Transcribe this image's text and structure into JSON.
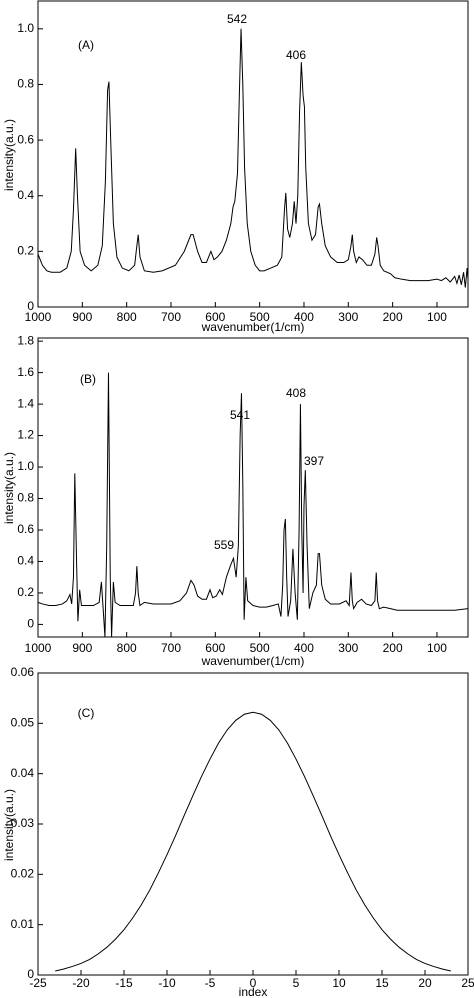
{
  "chart_data": [
    {
      "type": "line",
      "ylabel": "intensity(a.u.)",
      "xlabel": "wavenumber(1/cm)",
      "color": "#000000",
      "annotations": [
        "(A)",
        "542",
        "406"
      ],
      "xlim": [
        1000,
        30
      ],
      "xticks": [
        1000,
        900,
        800,
        700,
        600,
        500,
        400,
        300,
        200,
        100
      ],
      "ylim": [
        0,
        1.1
      ],
      "yticks": [
        0,
        0.2,
        0.4,
        0.6,
        0.8,
        {
          "value": 1,
          "label": "1.0"
        }
      ],
      "x": [
        1000,
        990,
        980,
        970,
        950,
        935,
        925,
        920,
        915,
        911,
        905,
        895,
        880,
        865,
        855,
        848,
        843,
        840,
        836,
        830,
        822,
        810,
        795,
        782,
        777,
        774,
        770,
        760,
        740,
        720,
        690,
        670,
        655,
        650,
        640,
        630,
        620,
        610,
        603,
        595,
        585,
        575,
        565,
        560,
        556,
        550,
        546,
        542,
        538,
        534,
        528,
        520,
        510,
        500,
        490,
        475,
        460,
        450,
        444,
        441,
        437,
        432,
        426,
        422,
        418,
        414,
        410,
        406,
        402,
        399,
        396,
        390,
        382,
        374,
        368,
        365,
        360,
        352,
        340,
        325,
        310,
        300,
        294,
        291,
        288,
        282,
        276,
        268,
        258,
        248,
        240,
        236,
        233,
        228,
        220,
        205,
        195,
        180,
        160,
        140,
        120,
        100,
        90,
        80,
        70,
        60,
        55,
        50,
        45,
        40,
        36,
        32,
        30
      ],
      "values": [
        0.19,
        0.15,
        0.13,
        0.125,
        0.125,
        0.14,
        0.2,
        0.35,
        0.57,
        0.4,
        0.2,
        0.15,
        0.13,
        0.15,
        0.22,
        0.45,
        0.78,
        0.81,
        0.6,
        0.3,
        0.18,
        0.14,
        0.13,
        0.15,
        0.22,
        0.26,
        0.18,
        0.13,
        0.125,
        0.13,
        0.15,
        0.2,
        0.26,
        0.26,
        0.2,
        0.16,
        0.16,
        0.2,
        0.17,
        0.18,
        0.2,
        0.24,
        0.3,
        0.36,
        0.38,
        0.48,
        0.75,
        1.0,
        0.8,
        0.5,
        0.3,
        0.2,
        0.15,
        0.13,
        0.13,
        0.14,
        0.15,
        0.18,
        0.35,
        0.41,
        0.28,
        0.25,
        0.3,
        0.38,
        0.3,
        0.4,
        0.7,
        0.88,
        0.76,
        0.72,
        0.5,
        0.3,
        0.24,
        0.26,
        0.36,
        0.37,
        0.3,
        0.22,
        0.18,
        0.16,
        0.16,
        0.17,
        0.22,
        0.26,
        0.2,
        0.16,
        0.18,
        0.17,
        0.15,
        0.15,
        0.19,
        0.25,
        0.22,
        0.15,
        0.13,
        0.12,
        0.105,
        0.1,
        0.095,
        0.095,
        0.095,
        0.1,
        0.095,
        0.105,
        0.09,
        0.11,
        0.085,
        0.115,
        0.08,
        0.125,
        0.07,
        0.14,
        0.1
      ]
    },
    {
      "type": "line",
      "ylabel": "intensity(a.u.)",
      "xlabel": "wavenumber(1/cm)",
      "color": "#000000",
      "annotations": [
        "(B)",
        "541",
        "408",
        "397",
        "559"
      ],
      "xlim": [
        1000,
        30
      ],
      "xticks": [
        1000,
        900,
        800,
        700,
        600,
        500,
        400,
        300,
        200,
        100
      ],
      "ylim": [
        -0.08,
        1.82
      ],
      "yticks": [
        0,
        0.2,
        0.4,
        0.6,
        0.8,
        {
          "value": 1,
          "label": "1.0"
        },
        1.2,
        1.4,
        1.6,
        1.8
      ],
      "x": [
        1000,
        990,
        975,
        960,
        945,
        935,
        928,
        924,
        920,
        917,
        913,
        910,
        906,
        902,
        890,
        875,
        862,
        857,
        853,
        849,
        845,
        841,
        837,
        834,
        830,
        826,
        815,
        800,
        785,
        780,
        777,
        774,
        770,
        760,
        740,
        720,
        700,
        680,
        665,
        655,
        648,
        640,
        630,
        620,
        612,
        606,
        598,
        590,
        584,
        575,
        565,
        559,
        553,
        548,
        544,
        541,
        538,
        535,
        531,
        527,
        515,
        500,
        485,
        470,
        458,
        452,
        448,
        445,
        442,
        439,
        436,
        430,
        425,
        420,
        415,
        411,
        408,
        405,
        402,
        400,
        397,
        393,
        388,
        380,
        372,
        368,
        365,
        360,
        352,
        340,
        320,
        305,
        298,
        294,
        291,
        288,
        280,
        270,
        260,
        248,
        240,
        237,
        234,
        230,
        220,
        205,
        190,
        150,
        100,
        60,
        30
      ],
      "values": [
        0.14,
        0.13,
        0.12,
        0.12,
        0.13,
        0.15,
        0.19,
        0.13,
        0.3,
        0.96,
        0.4,
        0.02,
        0.22,
        0.12,
        0.12,
        0.12,
        0.14,
        0.27,
        0.1,
        -0.08,
        0.5,
        1.6,
        0.3,
        -0.08,
        0.27,
        0.14,
        0.12,
        0.12,
        0.12,
        0.2,
        0.37,
        0.2,
        0.12,
        0.14,
        0.13,
        0.13,
        0.13,
        0.15,
        0.2,
        0.28,
        0.25,
        0.18,
        0.16,
        0.16,
        0.22,
        0.17,
        0.18,
        0.22,
        0.19,
        0.3,
        0.38,
        0.42,
        0.3,
        0.5,
        1.2,
        1.47,
        0.9,
        0.03,
        0.3,
        0.15,
        0.12,
        0.11,
        0.11,
        0.12,
        0.13,
        0.05,
        0.25,
        0.6,
        0.67,
        0.3,
        0.05,
        0.15,
        0.48,
        0.2,
        0.03,
        0.6,
        1.4,
        0.6,
        0.2,
        0.75,
        0.98,
        0.5,
        0.1,
        0.2,
        0.25,
        0.45,
        0.45,
        0.25,
        0.16,
        0.13,
        0.13,
        0.15,
        0.12,
        0.33,
        0.15,
        0.1,
        0.14,
        0.16,
        0.13,
        0.12,
        0.15,
        0.33,
        0.15,
        0.1,
        0.11,
        0.1,
        0.09,
        0.09,
        0.09,
        0.09,
        0.1
      ]
    },
    {
      "type": "line",
      "ylabel": "intensity(a.u.)",
      "xlabel": "index",
      "color": "#000000",
      "annotations": [
        "(C)"
      ],
      "xlim": [
        -25,
        25
      ],
      "xticks": [
        -25,
        -20,
        -15,
        -10,
        -5,
        0,
        5,
        10,
        15,
        20,
        25
      ],
      "ylim": [
        0,
        0.06
      ],
      "yticks": [
        0,
        0.01,
        0.02,
        0.03,
        0.04,
        0.05,
        0.06
      ],
      "x": [
        -23,
        -22,
        -21,
        -20,
        -19,
        -18,
        -17,
        -16,
        -15,
        -14,
        -13,
        -12,
        -11,
        -10,
        -9,
        -8,
        -7,
        -6,
        -5,
        -4,
        -3,
        -2,
        -1,
        0,
        1,
        2,
        3,
        4,
        5,
        6,
        7,
        8,
        9,
        10,
        11,
        12,
        13,
        14,
        15,
        16,
        17,
        18,
        19,
        20,
        21,
        22,
        23
      ],
      "values": [
        0.0008,
        0.0012,
        0.0017,
        0.0023,
        0.0031,
        0.0042,
        0.0055,
        0.0071,
        0.009,
        0.0113,
        0.0139,
        0.0169,
        0.0203,
        0.0239,
        0.0277,
        0.0317,
        0.0356,
        0.0394,
        0.0429,
        0.0461,
        0.0487,
        0.0506,
        0.0518,
        0.0522,
        0.0518,
        0.0506,
        0.0487,
        0.0461,
        0.0429,
        0.0394,
        0.0356,
        0.0317,
        0.0277,
        0.0239,
        0.0203,
        0.0169,
        0.0139,
        0.0113,
        0.009,
        0.0071,
        0.0055,
        0.0042,
        0.0031,
        0.0023,
        0.0017,
        0.0012,
        0.0008
      ]
    }
  ]
}
